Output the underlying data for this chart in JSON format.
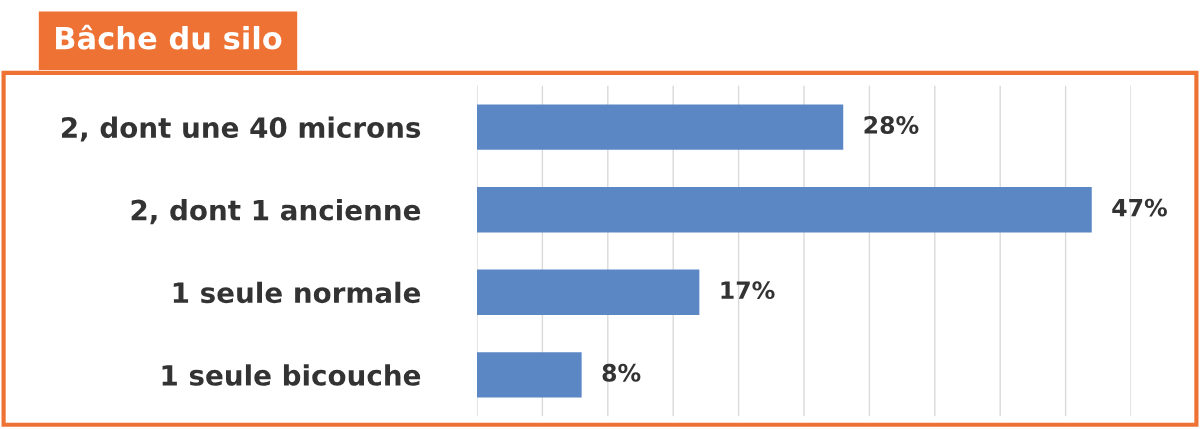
{
  "chart_data": {
    "type": "bar",
    "orientation": "horizontal",
    "title": "Bâche du silo",
    "categories": [
      "2, dont une 40 microns",
      "2, dont 1 ancienne",
      "1 seule normale",
      "1 seule bicouche"
    ],
    "values": [
      28,
      47,
      17,
      8
    ],
    "value_labels": [
      "28%",
      "47%",
      "17%",
      "8%"
    ],
    "color": "#5b87c5",
    "xlim": [
      0,
      50
    ],
    "xticks": [
      {
        "value": 0,
        "label": null
      },
      {
        "value": 5,
        "label": null
      },
      {
        "value": 10,
        "label": null
      },
      {
        "value": 15,
        "label": null
      },
      {
        "value": 20,
        "label": null
      },
      {
        "value": 25,
        "label": null
      },
      {
        "value": 30,
        "label": null
      },
      {
        "value": 35,
        "label": null
      },
      {
        "value": 40,
        "label": null
      },
      {
        "value": 45,
        "label": null
      },
      {
        "value": 50,
        "label": null
      }
    ],
    "grid": "x",
    "tick_labels": "y"
  }
}
